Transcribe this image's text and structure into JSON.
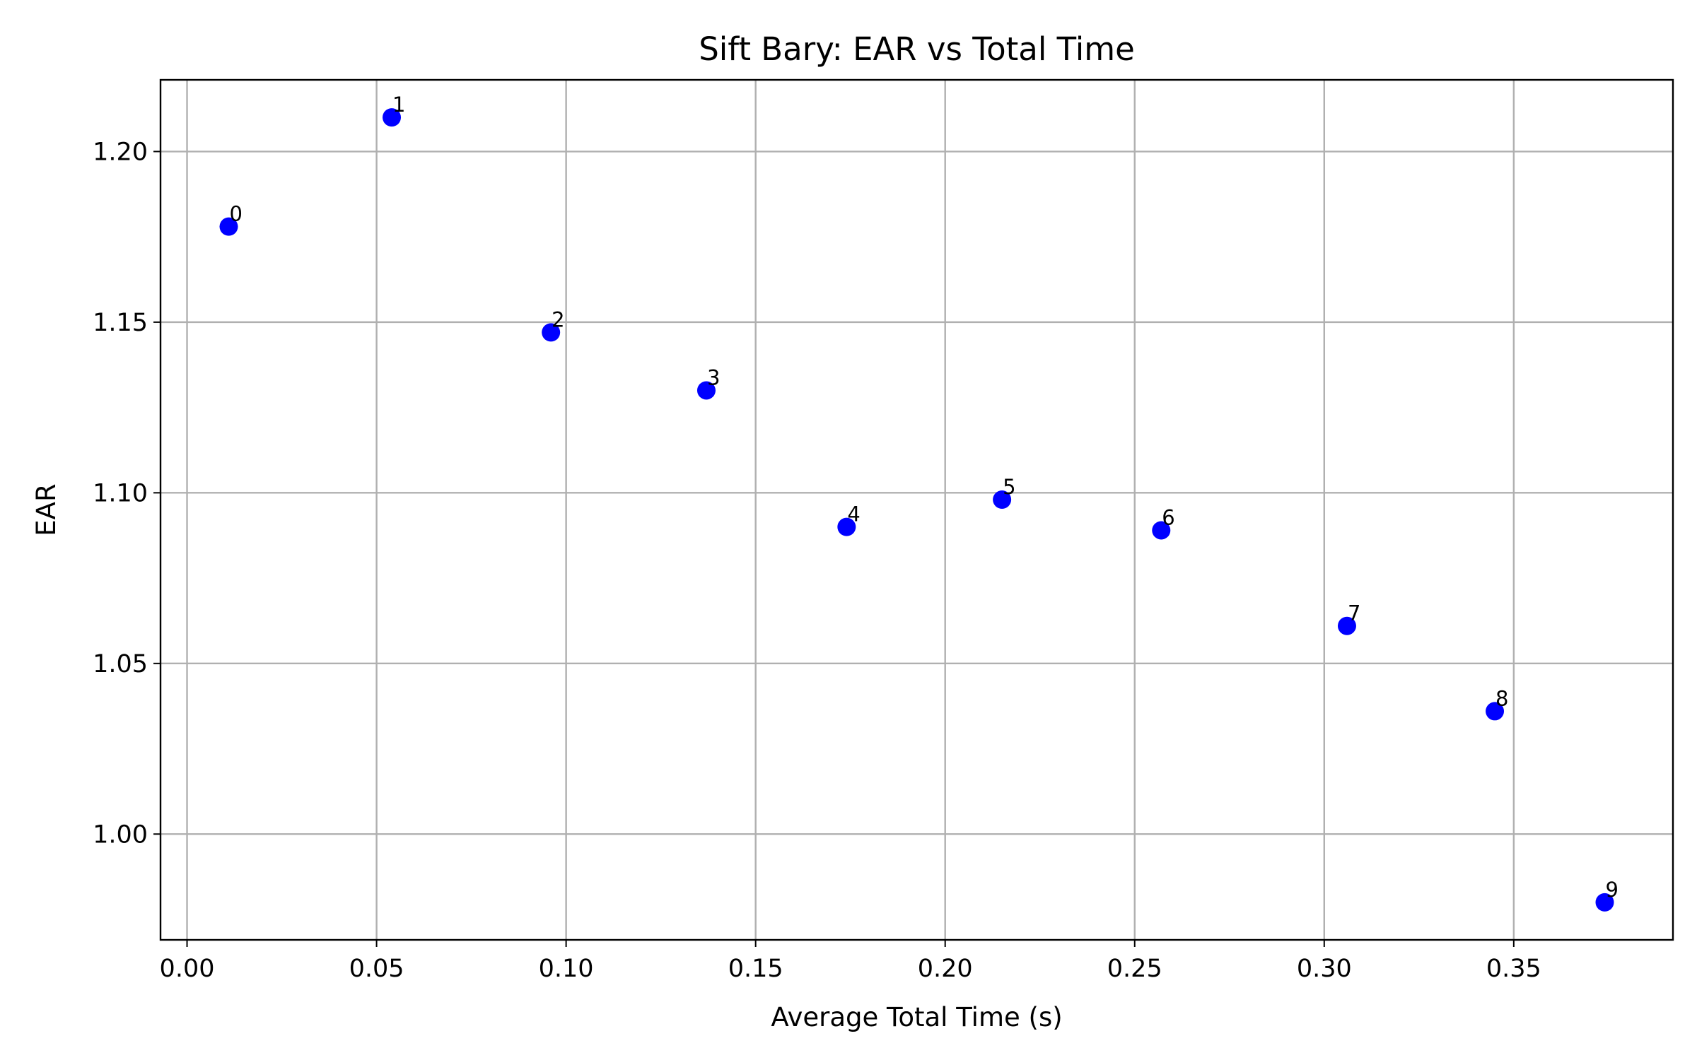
{
  "chart_data": {
    "type": "scatter",
    "title": "Sift Bary: EAR vs Total Time",
    "xlabel": "Average Total Time (s)",
    "ylabel": "EAR",
    "xlim": [
      -0.007,
      0.392
    ],
    "ylim": [
      0.969,
      1.221
    ],
    "xticks": [
      0.0,
      0.05,
      0.1,
      0.15,
      0.2,
      0.25,
      0.3,
      0.35
    ],
    "xtick_labels": [
      "0.00",
      "0.05",
      "0.10",
      "0.15",
      "0.20",
      "0.25",
      "0.30",
      "0.35"
    ],
    "yticks": [
      1.0,
      1.05,
      1.1,
      1.15,
      1.2
    ],
    "ytick_labels": [
      "1.00",
      "1.05",
      "1.10",
      "1.15",
      "1.20"
    ],
    "grid": true,
    "color": "#0000ff",
    "points": [
      {
        "label": "0",
        "x": 0.011,
        "y": 1.178
      },
      {
        "label": "1",
        "x": 0.054,
        "y": 1.21
      },
      {
        "label": "2",
        "x": 0.096,
        "y": 1.147
      },
      {
        "label": "3",
        "x": 0.137,
        "y": 1.13
      },
      {
        "label": "4",
        "x": 0.174,
        "y": 1.09
      },
      {
        "label": "5",
        "x": 0.215,
        "y": 1.098
      },
      {
        "label": "6",
        "x": 0.257,
        "y": 1.089
      },
      {
        "label": "7",
        "x": 0.306,
        "y": 1.061
      },
      {
        "label": "8",
        "x": 0.345,
        "y": 1.036
      },
      {
        "label": "9",
        "x": 0.374,
        "y": 0.98
      }
    ]
  }
}
